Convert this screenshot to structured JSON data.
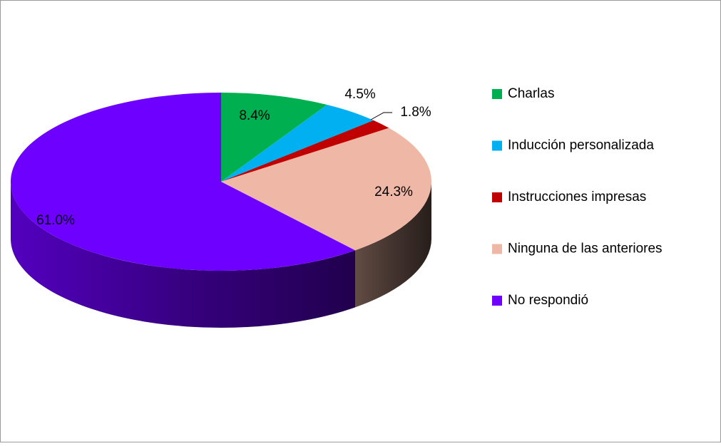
{
  "chart_data": {
    "type": "pie3d",
    "categories": [
      "Charlas",
      "Inducción personalizada",
      "Instrucciones impresas",
      "Ninguna de las anteriores",
      "No respondió"
    ],
    "values": [
      8.4,
      4.5,
      1.8,
      24.3,
      61.0
    ],
    "value_labels": [
      "8.4%",
      "4.5%",
      "1.8%",
      "24.3%",
      "61.0%"
    ],
    "colors": [
      "#00b050",
      "#00b0f0",
      "#c00000",
      "#efb8a6",
      "#6e00ff"
    ],
    "legend": "right"
  }
}
